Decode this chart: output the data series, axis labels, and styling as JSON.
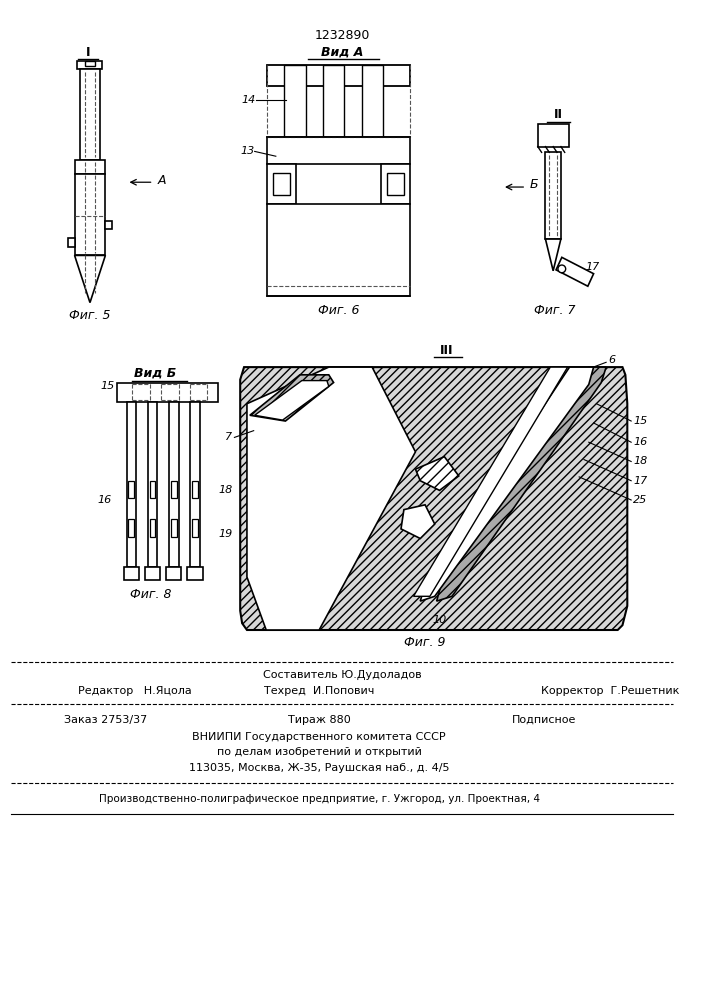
{
  "patent_number": "1232890",
  "background_color": "#ffffff",
  "line_color": "#000000",
  "fig5_label": "Фиг. 5",
  "fig6_label": "Фиг. 6",
  "fig7_label": "Фиг. 7",
  "fig8_label": "Фиг. 8",
  "fig9_label": "Фиг. 9",
  "vid_a_label": "Вид A",
  "vid_b_label": "Вид Б",
  "arrow_a_label": "A",
  "arrow_b_label": "Б",
  "roman_I": "I",
  "roman_II": "II",
  "roman_III": "III",
  "label_14": "14",
  "label_13": "13",
  "label_17": "17",
  "label_15": "15",
  "label_16": "16",
  "label_18": "18",
  "label_19": "19",
  "label_6": "6",
  "label_7": "7",
  "label_10": "10",
  "label_25": "25",
  "footer_sostavitel": "Составитель Ю.Дудоладов",
  "footer_editor": "Редактор   Н.Яцола",
  "footer_techred": "Техред  И.Попович",
  "footer_corrector": "Корректор  Г.Решетник",
  "footer_order": "Заказ 2753/37",
  "footer_tirazh": "Тираж 880",
  "footer_podpisnoe": "Подписное",
  "footer_vnipi": "ВНИИПИ Государственного комитета СССР",
  "footer_affairs": "по делам изобретений и открытий",
  "footer_address": "113035, Москва, Ж-35, Раушская наб., д. 4/5",
  "footer_production": "Производственно-полиграфическое предприятие, г. Ужгород, ул. Проектная, 4"
}
